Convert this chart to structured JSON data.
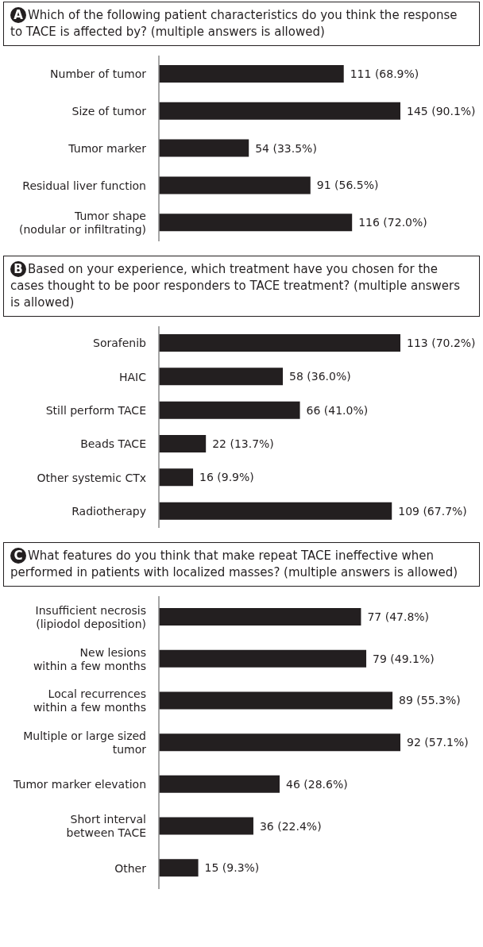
{
  "chart_data": [
    {
      "type": "bar",
      "orientation": "horizontal",
      "title": "Which of the following patient characteristics do you think the response to TACE is affected by? (multiple answers is allowed)",
      "annotations": [
        "A"
      ],
      "categories": [
        "Number of tumor",
        "Size of tumor",
        "Tumor marker",
        "Residual liver function",
        "Tumor shape\n(nodular or infiltrating)"
      ],
      "values": [
        111,
        145,
        54,
        91,
        116
      ],
      "value_labels": [
        "111 (68.9%)",
        "145 (90.1%)",
        "54 (33.5%)",
        "91 (56.5%)",
        "116 (72.0%)"
      ],
      "color": "#231f20"
    },
    {
      "type": "bar",
      "orientation": "horizontal",
      "title": "Based on your experience, which treatment have you chosen for the cases thought to be poor responders to TACE treatment? (multiple answers is allowed)",
      "annotations": [
        "B"
      ],
      "categories": [
        "Sorafenib",
        "HAIC",
        "Still perform TACE",
        "Beads TACE",
        "Other systemic CTx",
        "Radiotherapy"
      ],
      "values": [
        113,
        58,
        66,
        22,
        16,
        109
      ],
      "value_labels": [
        "113 (70.2%)",
        "58 (36.0%)",
        "66 (41.0%)",
        "22 (13.7%)",
        "16 (9.9%)",
        "109 (67.7%)"
      ],
      "color": "#231f20"
    },
    {
      "type": "bar",
      "orientation": "horizontal",
      "title": "What features do you think that make repeat TACE ineffective when performed in patients with localized masses? (multiple answers is allowed)",
      "annotations": [
        "C"
      ],
      "categories": [
        "Insufficient necrosis\n(lipiodol deposition)",
        "New lesions\nwithin a few months",
        "Local recurrences\nwithin a few months",
        "Multiple or large sized\ntumor",
        "Tumor marker elevation",
        "Short interval\nbetween TACE",
        "Other"
      ],
      "values": [
        77,
        79,
        89,
        92,
        46,
        36,
        15
      ],
      "value_labels": [
        "77 (47.8%)",
        "79 (49.1%)",
        "89 (55.3%)",
        "92 (57.1%)",
        "46 (28.6%)",
        "36 (22.4%)",
        "15 (9.3%)"
      ],
      "color": "#231f20"
    }
  ]
}
